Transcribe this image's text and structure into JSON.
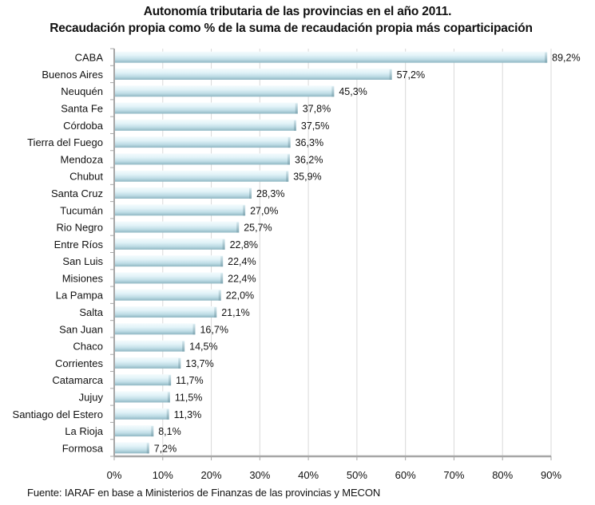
{
  "chart_data": {
    "type": "bar",
    "orientation": "horizontal",
    "title": "Autonomía tributaria de las provincias en el año 2011.",
    "subtitle": "Recaudación propia como % de la suma de recaudación propia más coparticipación",
    "xlabel": "",
    "ylabel": "",
    "xlim": [
      0,
      90
    ],
    "grid": true,
    "categories": [
      "CABA",
      "Buenos Aires",
      "Neuquén",
      "Santa Fe",
      "Córdoba",
      "Tierra del Fuego",
      "Mendoza",
      "Chubut",
      "Santa Cruz",
      "Tucumán",
      "Rio Negro",
      "Entre Ríos",
      "San Luis",
      "Misiones",
      "La Pampa",
      "Salta",
      "San Juan",
      "Chaco",
      "Corrientes",
      "Catamarca",
      "Jujuy",
      "Santiago del Estero",
      "La Rioja",
      "Formosa"
    ],
    "values": [
      89.2,
      57.2,
      45.3,
      37.8,
      37.5,
      36.3,
      36.2,
      35.9,
      28.3,
      27.0,
      25.7,
      22.8,
      22.4,
      22.4,
      22.0,
      21.1,
      16.7,
      14.5,
      13.7,
      11.7,
      11.5,
      11.3,
      8.1,
      7.2
    ],
    "data_labels": [
      "89,2%",
      "57,2%",
      "45,3%",
      "37,8%",
      "37,5%",
      "36,3%",
      "36,2%",
      "35,9%",
      "28,3%",
      "27,0%",
      "25,7%",
      "22,8%",
      "22,4%",
      "22,4%",
      "22,0%",
      "21,1%",
      "16,7%",
      "14,5%",
      "13,7%",
      "11,7%",
      "11,5%",
      "11,3%",
      "8,1%",
      "7,2%"
    ],
    "x_ticks": [
      0,
      10,
      20,
      30,
      40,
      50,
      60,
      70,
      80,
      90
    ],
    "x_tick_labels": [
      "0%",
      "10%",
      "20%",
      "30%",
      "40%",
      "50%",
      "60%",
      "70%",
      "80%",
      "90%"
    ],
    "colors": {
      "bar_light": "#eef9fc",
      "bar_mid": "#c9e6ee",
      "bar_dark": "#9fc4cf",
      "grid": "#d9d9d9",
      "axis": "#a6a6a6"
    }
  },
  "source": "Fuente: IARAF en base a Ministerios de Finanzas de las provincias y MECON"
}
